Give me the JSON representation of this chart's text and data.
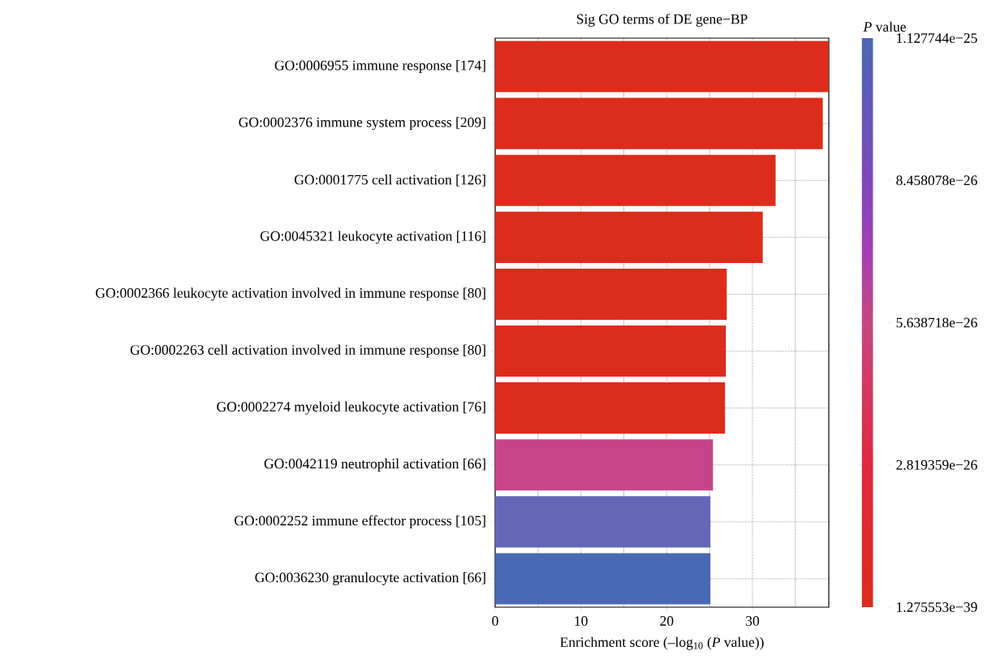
{
  "chart_data": {
    "type": "bar",
    "orientation": "horizontal",
    "title": "Sig GO terms of DE gene−BP",
    "xlabel": "Enrichment score (–log$_{10}$ (*P* value))",
    "clabel": "*P* value",
    "categories": [
      "GO:0006955 immune response [174]",
      "GO:0002376 immune system process [209]",
      "GO:0001775 cell activation [126]",
      "GO:0045321 leukocyte activation [116]",
      "GO:0002366 leukocyte activation involved in immune response [80]",
      "GO:0002263 cell activation involved in immune response [80]",
      "GO:0002274 myeloid leukocyte activation [76]",
      "GO:0042119 neutrophil activation [66]",
      "GO:0002252 immune effector process [105]",
      "GO:0036230 granulocyte activation [66]"
    ],
    "values": [
      38.9,
      38.2,
      32.7,
      31.2,
      27.0,
      26.9,
      26.8,
      25.4,
      25.1,
      25.1
    ],
    "colors": [
      "#dc2c1b",
      "#dc2c1b",
      "#dc2c1b",
      "#dc2c1b",
      "#dc2c1b",
      "#dc2c1b",
      "#dc2c1b",
      "#c8448a",
      "#6666b8",
      "#4a69b4"
    ],
    "xlim": [
      0,
      38.9
    ],
    "xticks": [
      0,
      10,
      20,
      30
    ],
    "grid": true,
    "clim": [
      1.275553e-39,
      1.127744e-25
    ],
    "cticks": [
      {
        "value": 1.275553e-39,
        "label": "1.275553e−39"
      },
      {
        "value": 2.819359e-26,
        "label": "2.819359e−26"
      },
      {
        "value": 5.638718e-26,
        "label": "5.638718e−26"
      },
      {
        "value": 8.458078e-26,
        "label": "8.458078e−26"
      },
      {
        "value": 1.127744e-25,
        "label": "1.127744e−25"
      }
    ]
  }
}
